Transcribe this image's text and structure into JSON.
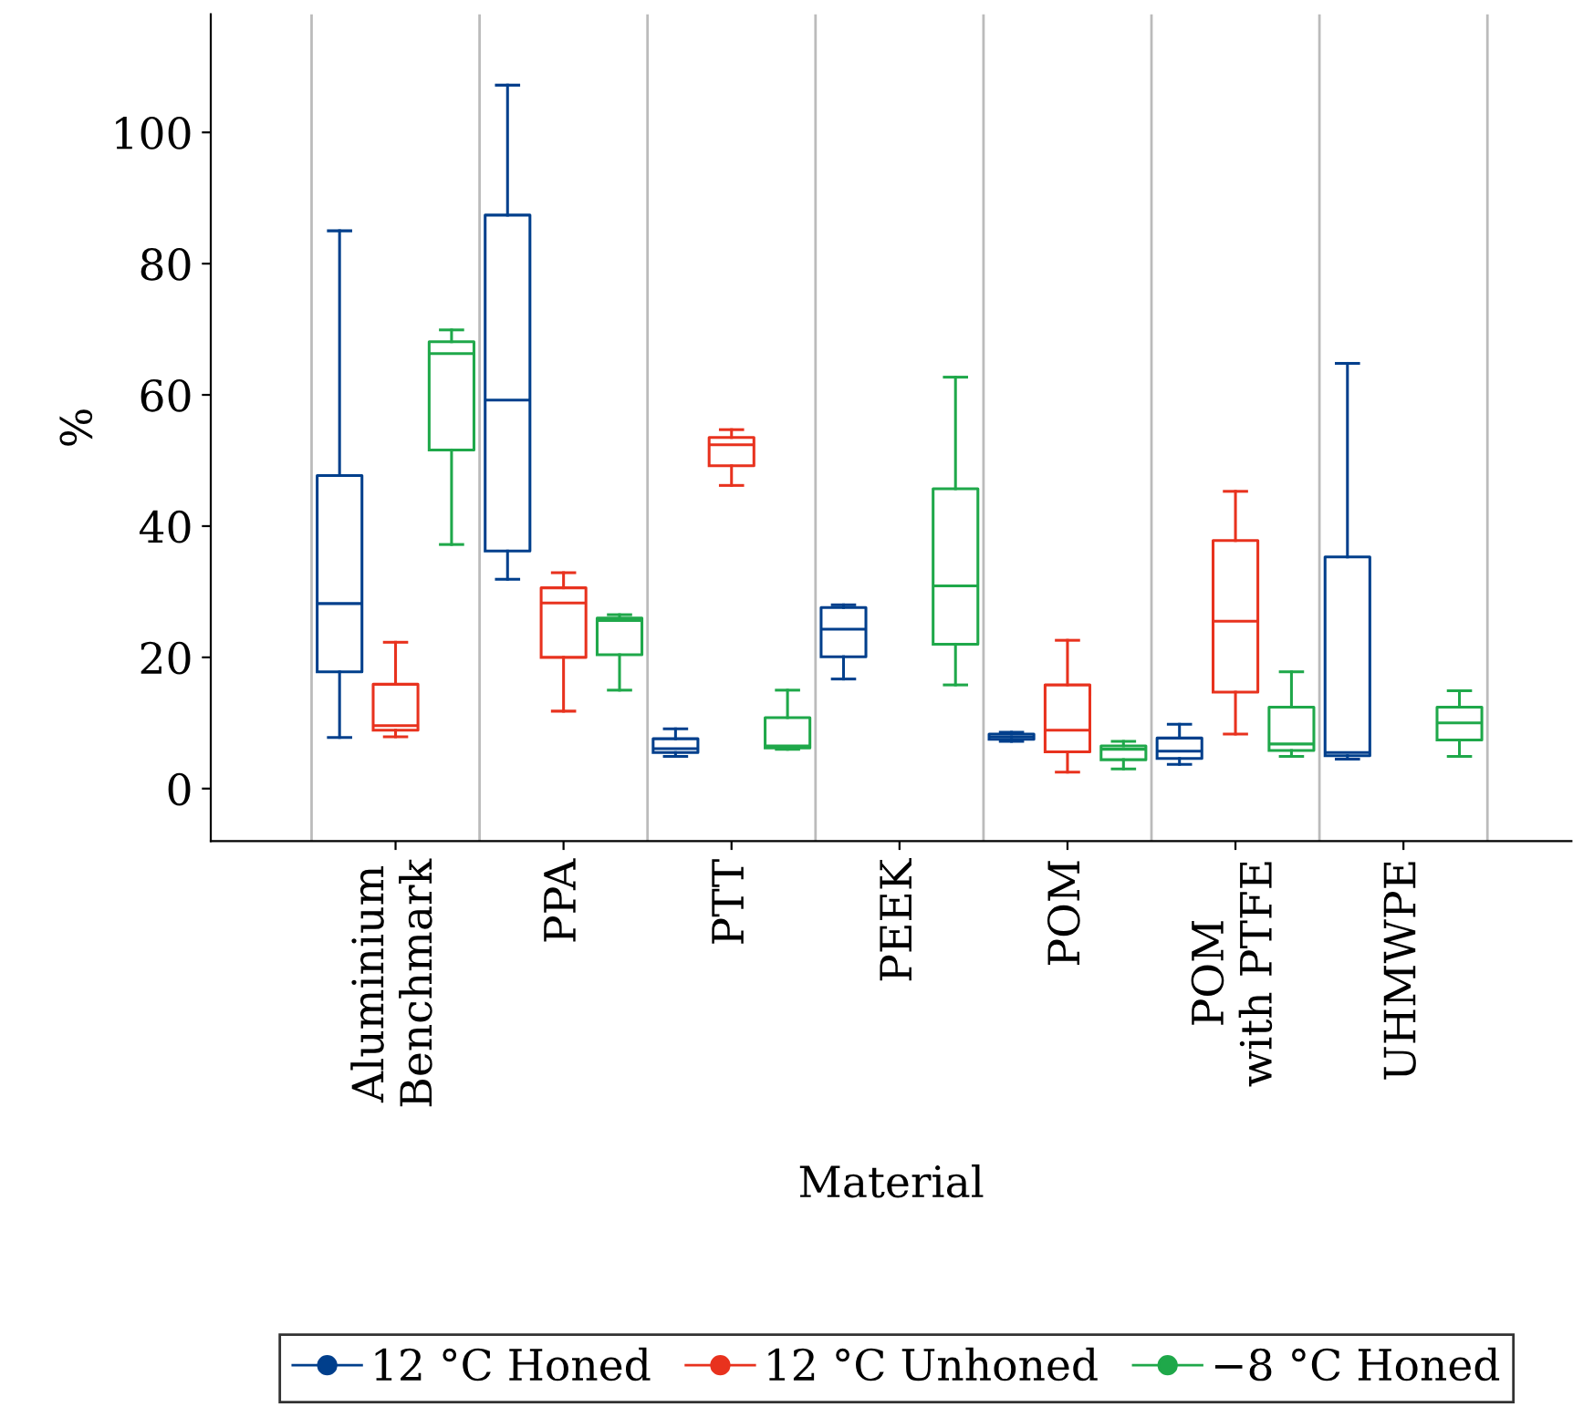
{
  "chart_data": {
    "type": "box",
    "xlabel": "Material",
    "ylabel": "%",
    "categories": [
      "Aluminium\nBenchmark",
      "PPA",
      "PTT",
      "PEEK",
      "POM",
      "POM\nwith PTFE",
      "UHMWPE"
    ],
    "ylim": [
      -8,
      118
    ],
    "yticks": [
      0,
      20,
      40,
      60,
      80,
      100
    ],
    "grid": "x",
    "legend": "bottom",
    "marker": "circle",
    "series": [
      {
        "name": "12 °C Honed",
        "color": "#003f8c",
        "boxes": [
          {
            "low": 7.8,
            "q1": 17.8,
            "median": 28.2,
            "q3": 47.7,
            "high": 85
          },
          {
            "low": 31.9,
            "q1": 36.2,
            "median": 59.2,
            "q3": 87.4,
            "high": 107.2
          },
          {
            "low": 4.9,
            "q1": 5.5,
            "median": 6.1,
            "q3": 7.6,
            "high": 9.1
          },
          {
            "low": 16.7,
            "q1": 20.1,
            "median": 24.3,
            "q3": 27.6,
            "high": 28.0
          },
          {
            "low": 7.2,
            "q1": 7.5,
            "median": 7.9,
            "q3": 8.3,
            "high": 8.6
          },
          {
            "low": 3.7,
            "q1": 4.6,
            "median": 5.7,
            "q3": 7.7,
            "high": 9.8
          },
          {
            "low": 4.5,
            "q1": 5.0,
            "median": 5.5,
            "q3": 35.3,
            "high": 64.8
          }
        ]
      },
      {
        "name": "12 °C Unhoned",
        "color": "#e8321e",
        "boxes": [
          {
            "low": 7.9,
            "q1": 8.9,
            "median": 9.6,
            "q3": 15.9,
            "high": 22.3
          },
          {
            "low": 11.8,
            "q1": 20.0,
            "median": 28.3,
            "q3": 30.6,
            "high": 32.9
          },
          {
            "low": 46.2,
            "q1": 49.2,
            "median": 52.4,
            "q3": 53.5,
            "high": 54.7
          },
          null,
          {
            "low": 2.5,
            "q1": 5.6,
            "median": 8.9,
            "q3": 15.8,
            "high": 22.6
          },
          {
            "low": 8.3,
            "q1": 14.7,
            "median": 25.5,
            "q3": 37.8,
            "high": 45.3
          },
          null
        ]
      },
      {
        "name": "−8 °C Honed",
        "color": "#1fa84a",
        "boxes": [
          {
            "low": 37.2,
            "q1": 51.6,
            "median": 66.3,
            "q3": 68.1,
            "high": 69.9
          },
          {
            "low": 15.0,
            "q1": 20.4,
            "median": 25.6,
            "q3": 26.0,
            "high": 26.5
          },
          {
            "low": 6.0,
            "q1": 6.2,
            "median": 6.5,
            "q3": 10.8,
            "high": 15.0
          },
          {
            "low": 15.8,
            "q1": 22.0,
            "median": 30.9,
            "q3": 45.7,
            "high": 62.7
          },
          {
            "low": 3.0,
            "q1": 4.4,
            "median": 6.0,
            "q3": 6.5,
            "high": 7.2
          },
          {
            "low": 4.9,
            "q1": 5.8,
            "median": 6.8,
            "q3": 12.4,
            "high": 17.8
          },
          {
            "low": 4.9,
            "q1": 7.4,
            "median": 10.0,
            "q3": 12.4,
            "high": 14.9
          }
        ]
      }
    ]
  }
}
